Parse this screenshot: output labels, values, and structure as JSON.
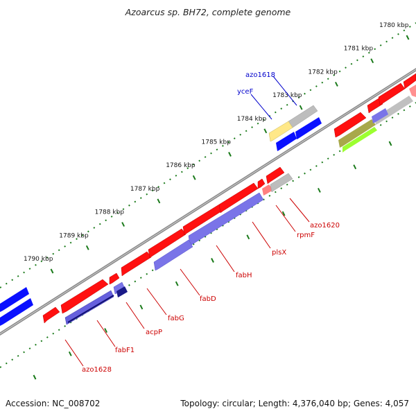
{
  "title": "Azoarcus sp. BH72, complete genome",
  "footer": {
    "accession": "Accession: NC_008702",
    "topology": "Topology: circular; Length: 4,376,040 bp; Genes: 4,057"
  },
  "colors": {
    "forward_cds": "#ff1010",
    "reverse_cds": "#0a10ff",
    "other_cds": "#b8b8b8",
    "rna": "#ffee88",
    "backbone": "#888888",
    "tick": "#1a7a1a",
    "forward_label": "#cc0000",
    "reverse_label": "#0000cc"
  },
  "scale_labels": [
    "1780 kbp",
    "1781 kbp",
    "1782 kbp",
    "1783 kbp",
    "1784 kbp",
    "1785 kbp",
    "1786 kbp",
    "1787 kbp",
    "1788 kbp",
    "1789 kbp",
    "1790 kbp"
  ],
  "gene_labels": {
    "forward": [
      "azo1620",
      "rpmF",
      "plsX",
      "fabH",
      "fabD",
      "fabG",
      "acpP",
      "fabF1",
      "azo1628"
    ],
    "reverse": [
      "azo1618",
      "yceF"
    ]
  }
}
